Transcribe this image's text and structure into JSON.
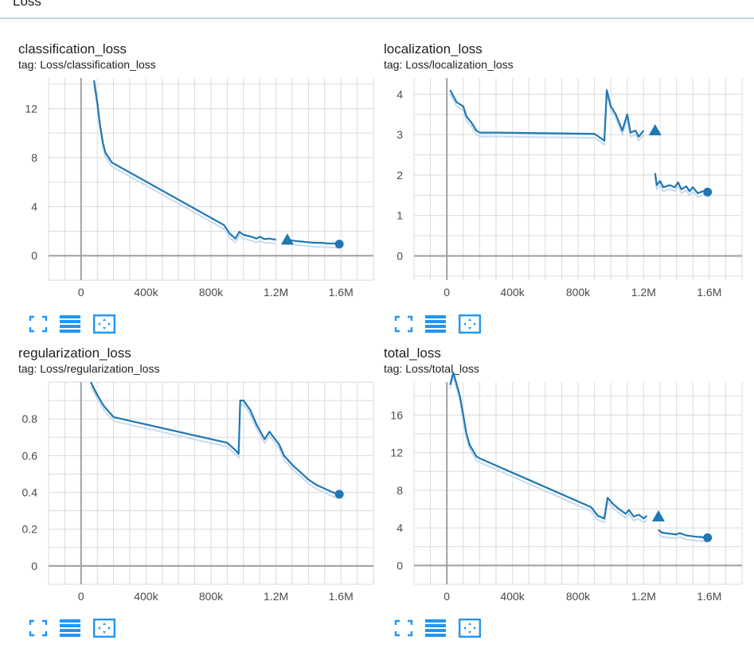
{
  "section": {
    "title": "Loss"
  },
  "colors": {
    "line": "#1f77b4",
    "smooth_raw": "#c6dcf0",
    "grid": "#dadada",
    "axis": "#9e9e9e",
    "control": "#2196f3"
  },
  "controls": {
    "expand": "fullscreen-expand-icon",
    "log_scale": "stacked-lines-icon",
    "fit_domain": "fit-to-data-icon"
  },
  "chart_data": [
    {
      "type": "line",
      "title": "classification_loss",
      "tag_prefix": "tag: ",
      "tag": "Loss/classification_loss",
      "x_ticks": [
        "0",
        "400k",
        "800k",
        "1.2M",
        "1.6M"
      ],
      "x_tick_values": [
        0,
        400000,
        800000,
        1200000,
        1600000
      ],
      "y_ticks": [
        "0",
        "4",
        "8",
        "12"
      ],
      "y_tick_values": [
        0,
        4,
        8,
        12
      ],
      "xlim": [
        -200000,
        1800000
      ],
      "ylim": [
        -2,
        14.5
      ],
      "series": [
        {
          "values": [
            [
              80000,
              14.3
            ],
            [
              100000,
              12.5
            ],
            [
              115000,
              10.8
            ],
            [
              135000,
              9.2
            ],
            [
              150000,
              8.4
            ],
            [
              190000,
              7.6
            ],
            [
              880000,
              2.5
            ],
            [
              915000,
              1.8
            ],
            [
              950000,
              1.4
            ],
            [
              975000,
              1.95
            ],
            [
              1000000,
              1.7
            ],
            [
              1050000,
              1.55
            ],
            [
              1080000,
              1.4
            ],
            [
              1100000,
              1.55
            ],
            [
              1130000,
              1.35
            ],
            [
              1160000,
              1.4
            ],
            [
              1200000,
              1.3
            ]
          ]
        },
        {
          "values": [
            [
              1270000,
              1.3
            ],
            [
              1320000,
              1.2
            ],
            [
              1360000,
              1.15
            ],
            [
              1400000,
              1.1
            ],
            [
              1440000,
              1.05
            ],
            [
              1480000,
              1.05
            ],
            [
              1520000,
              1.0
            ],
            [
              1560000,
              1.0
            ],
            [
              1590000,
              0.95
            ]
          ]
        }
      ],
      "marker_triangle": [
        1270000,
        1.3
      ],
      "marker_circle": [
        1590000,
        0.95
      ]
    },
    {
      "type": "line",
      "title": "localization_loss",
      "tag_prefix": "tag: ",
      "tag": "Loss/localization_loss",
      "x_ticks": [
        "0",
        "400k",
        "800k",
        "1.2M",
        "1.6M"
      ],
      "x_tick_values": [
        0,
        400000,
        800000,
        1200000,
        1600000
      ],
      "y_ticks": [
        "0",
        "1",
        "2",
        "3",
        "4"
      ],
      "y_tick_values": [
        0,
        1,
        2,
        3,
        4
      ],
      "xlim": [
        -200000,
        1800000
      ],
      "ylim": [
        -0.6,
        4.4
      ],
      "series": [
        {
          "values": [
            [
              20000,
              4.1
            ],
            [
              60000,
              3.8
            ],
            [
              100000,
              3.7
            ],
            [
              120000,
              3.45
            ],
            [
              150000,
              3.3
            ],
            [
              180000,
              3.1
            ],
            [
              200000,
              3.05
            ],
            [
              300000,
              3.05
            ],
            [
              900000,
              3.02
            ],
            [
              960000,
              2.85
            ],
            [
              975000,
              4.1
            ],
            [
              1000000,
              3.7
            ],
            [
              1030000,
              3.5
            ],
            [
              1070000,
              3.1
            ],
            [
              1100000,
              3.5
            ],
            [
              1120000,
              3.05
            ],
            [
              1150000,
              3.1
            ],
            [
              1170000,
              2.95
            ],
            [
              1200000,
              3.1
            ]
          ]
        },
        {
          "values": [
            [
              1270000,
              2.05
            ],
            [
              1280000,
              1.75
            ],
            [
              1300000,
              1.85
            ],
            [
              1320000,
              1.7
            ],
            [
              1360000,
              1.75
            ],
            [
              1390000,
              1.7
            ],
            [
              1410000,
              1.82
            ],
            [
              1430000,
              1.65
            ],
            [
              1460000,
              1.72
            ],
            [
              1480000,
              1.6
            ],
            [
              1500000,
              1.7
            ],
            [
              1530000,
              1.55
            ],
            [
              1560000,
              1.6
            ],
            [
              1590000,
              1.58
            ]
          ]
        }
      ],
      "marker_triangle": [
        1270000,
        3.1
      ],
      "marker_circle": [
        1590000,
        1.58
      ]
    },
    {
      "type": "line",
      "title": "regularization_loss",
      "tag_prefix": "tag: ",
      "tag": "Loss/regularization_loss",
      "x_ticks": [
        "0",
        "400k",
        "800k",
        "1.2M",
        "1.6M"
      ],
      "x_tick_values": [
        0,
        400000,
        800000,
        1200000,
        1600000
      ],
      "y_ticks": [
        "0",
        "0.2",
        "0.4",
        "0.6",
        "0.8"
      ],
      "y_tick_values": [
        0,
        0.2,
        0.4,
        0.6,
        0.8
      ],
      "xlim": [
        -200000,
        1800000
      ],
      "ylim": [
        -0.1,
        1.0
      ],
      "series": [
        {
          "values": [
            [
              60000,
              1.0
            ],
            [
              100000,
              0.93
            ],
            [
              140000,
              0.87
            ],
            [
              200000,
              0.81
            ],
            [
              900000,
              0.67
            ],
            [
              950000,
              0.63
            ],
            [
              970000,
              0.61
            ],
            [
              980000,
              0.9
            ],
            [
              1000000,
              0.9
            ],
            [
              1040000,
              0.85
            ],
            [
              1080000,
              0.77
            ],
            [
              1130000,
              0.69
            ],
            [
              1160000,
              0.73
            ],
            [
              1220000,
              0.66
            ],
            [
              1250000,
              0.6
            ],
            [
              1300000,
              0.55
            ],
            [
              1350000,
              0.51
            ],
            [
              1400000,
              0.47
            ],
            [
              1450000,
              0.44
            ],
            [
              1500000,
              0.42
            ],
            [
              1550000,
              0.4
            ],
            [
              1590000,
              0.39
            ]
          ]
        }
      ],
      "marker_circle": [
        1590000,
        0.39
      ]
    },
    {
      "type": "line",
      "title": "total_loss",
      "tag_prefix": "tag: ",
      "tag": "Loss/total_loss",
      "x_ticks": [
        "0",
        "400k",
        "800k",
        "1.2M",
        "1.6M"
      ],
      "x_tick_values": [
        0,
        400000,
        800000,
        1200000,
        1600000
      ],
      "y_ticks": [
        "0",
        "4",
        "8",
        "12",
        "16"
      ],
      "y_tick_values": [
        0,
        4,
        8,
        12,
        16
      ],
      "xlim": [
        -200000,
        1800000
      ],
      "ylim": [
        -2,
        19.5
      ],
      "series": [
        {
          "values": [
            [
              20000,
              19.2
            ],
            [
              40000,
              20.5
            ],
            [
              80000,
              18
            ],
            [
              100000,
              16
            ],
            [
              120000,
              14
            ],
            [
              140000,
              12.8
            ],
            [
              180000,
              11.6
            ],
            [
              200000,
              11.4
            ],
            [
              880000,
              6.2
            ],
            [
              920000,
              5.3
            ],
            [
              960000,
              5.0
            ],
            [
              980000,
              7.2
            ],
            [
              1010000,
              6.6
            ],
            [
              1050000,
              6.0
            ],
            [
              1090000,
              5.5
            ],
            [
              1110000,
              5.9
            ],
            [
              1140000,
              5.2
            ],
            [
              1170000,
              5.4
            ],
            [
              1200000,
              5.0
            ],
            [
              1220000,
              5.3
            ]
          ]
        },
        {
          "values": [
            [
              1290000,
              3.8
            ],
            [
              1310000,
              3.5
            ],
            [
              1350000,
              3.4
            ],
            [
              1400000,
              3.3
            ],
            [
              1420000,
              3.45
            ],
            [
              1460000,
              3.2
            ],
            [
              1500000,
              3.1
            ],
            [
              1530000,
              3.05
            ],
            [
              1560000,
              3.0
            ],
            [
              1590000,
              2.95
            ]
          ]
        }
      ],
      "marker_triangle": [
        1290000,
        5.2
      ],
      "marker_circle": [
        1590000,
        2.95
      ]
    }
  ]
}
